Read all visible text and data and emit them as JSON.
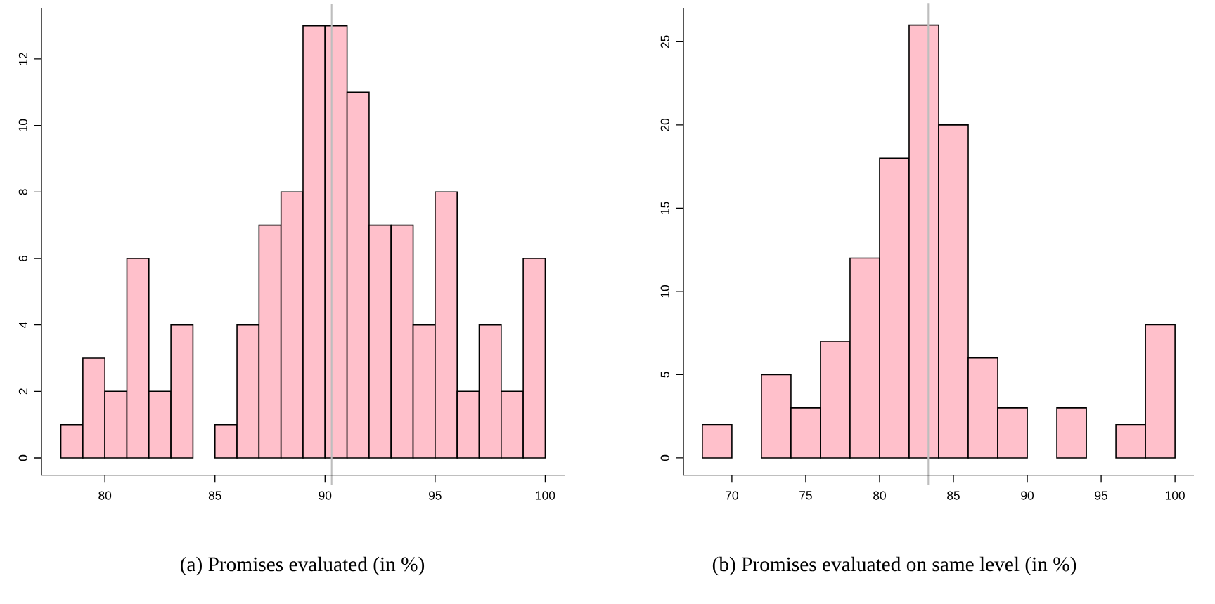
{
  "chart_data": [
    {
      "type": "histogram",
      "title": "(a)  Promises evaluated (in %)",
      "color": "#ffc0cb",
      "bins": [
        78,
        79,
        80,
        81,
        82,
        83,
        84,
        85,
        86,
        87,
        88,
        89,
        90,
        91,
        92,
        93,
        94,
        95,
        96,
        97,
        98,
        99,
        100
      ],
      "values": [
        1,
        3,
        2,
        6,
        2,
        4,
        0,
        1,
        4,
        7,
        8,
        13,
        13,
        11,
        7,
        7,
        4,
        8,
        2,
        4,
        2,
        6
      ],
      "xlim": [
        77.12,
        100.88
      ],
      "ylim": [
        -0.52,
        13.52
      ],
      "xticks": [
        80,
        85,
        90,
        95,
        100
      ],
      "yticks": [
        0,
        2,
        4,
        6,
        8,
        10,
        12
      ],
      "ref_lines": [
        {
          "axis": "x",
          "value": 90.3,
          "color": "#bebebe"
        }
      ]
    },
    {
      "type": "histogram",
      "title": "(b)  Promises evaluated on same level (in %)",
      "color": "#ffc0cb",
      "bins": [
        68,
        70,
        72,
        74,
        76,
        78,
        80,
        82,
        84,
        86,
        88,
        90,
        92,
        94,
        96,
        98,
        100
      ],
      "values": [
        2,
        0,
        5,
        3,
        7,
        12,
        18,
        26,
        20,
        6,
        3,
        0,
        3,
        0,
        2,
        8
      ],
      "xlim": [
        66.72,
        101.28
      ],
      "ylim": [
        -1.04,
        27.04
      ],
      "xticks": [
        70,
        75,
        80,
        85,
        90,
        95,
        100
      ],
      "yticks": [
        0,
        5,
        10,
        15,
        20,
        25
      ],
      "ref_lines": [
        {
          "axis": "x",
          "value": 83.3,
          "color": "#bebebe"
        }
      ]
    }
  ]
}
